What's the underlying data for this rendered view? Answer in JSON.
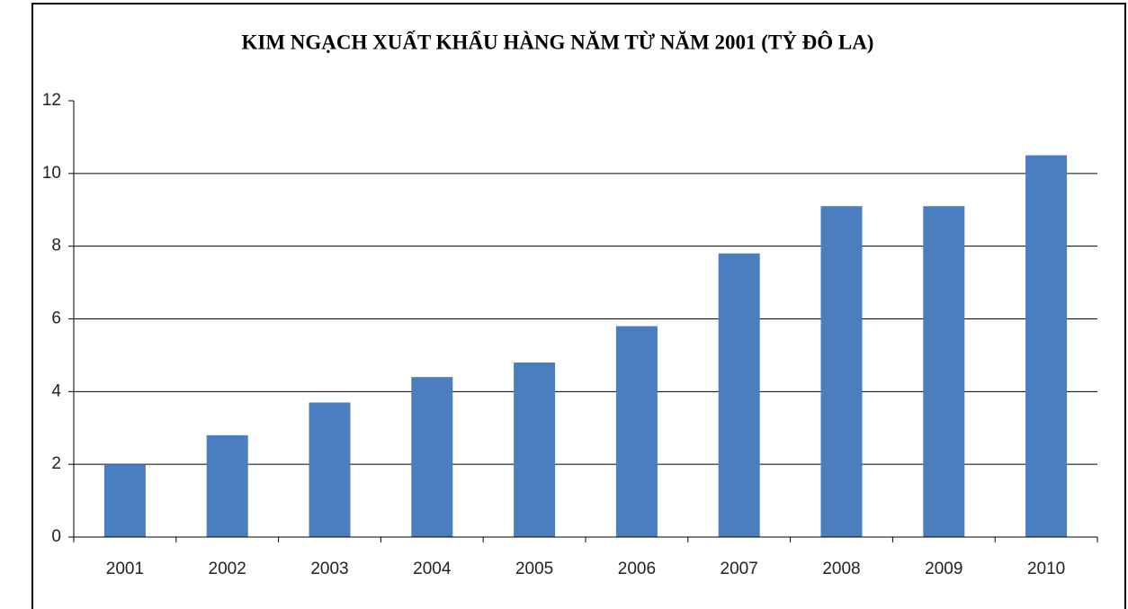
{
  "chart_data": {
    "type": "bar",
    "title": "KIM NGẠCH XUẤT KHẨU HÀNG NĂM TỪ NĂM 2001 (TỶ ĐÔ LA)",
    "categories": [
      "2001",
      "2002",
      "2003",
      "2004",
      "2005",
      "2006",
      "2007",
      "2008",
      "2009",
      "2010"
    ],
    "values": [
      2.0,
      2.8,
      3.7,
      4.4,
      4.8,
      5.8,
      7.8,
      9.1,
      9.1,
      10.5
    ],
    "color": "#4a7ebf",
    "ylim": [
      0,
      12
    ],
    "yticks": [
      0,
      2,
      4,
      6,
      8,
      10,
      12
    ],
    "grid": true
  }
}
